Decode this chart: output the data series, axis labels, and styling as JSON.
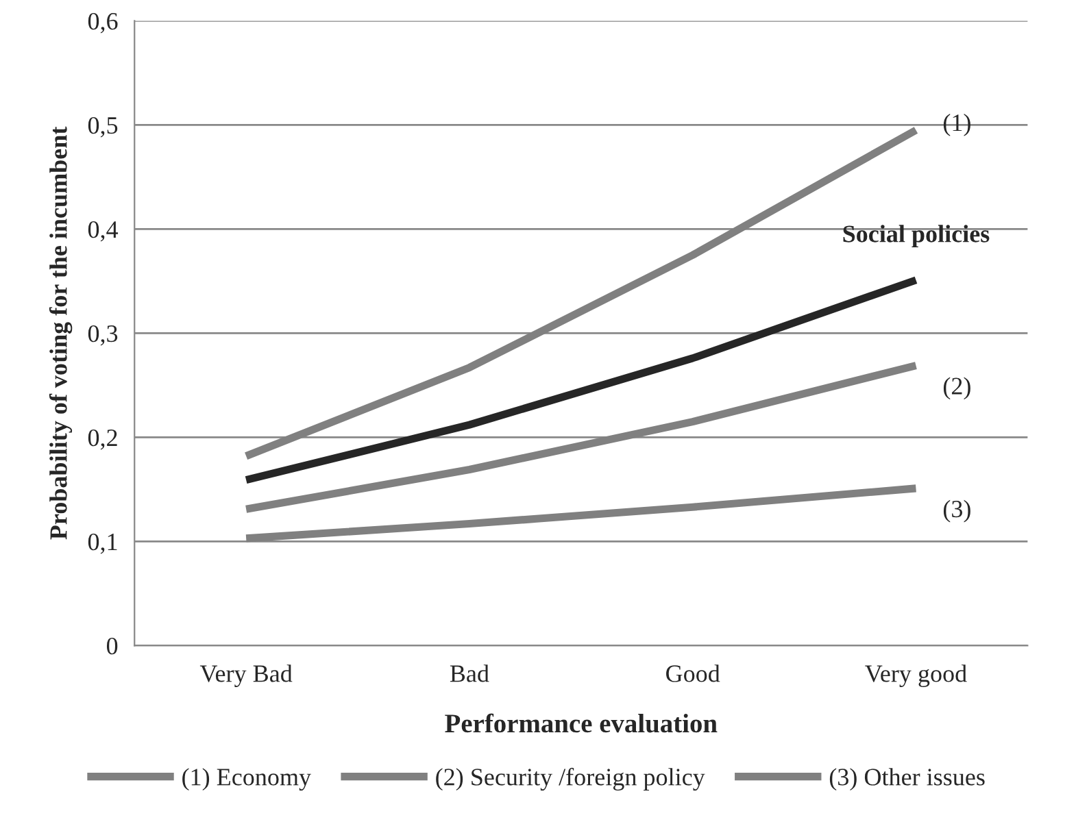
{
  "chart_data": {
    "type": "line",
    "xlabel": "Performance evaluation",
    "ylabel": "Probability of voting for the incumbent",
    "categories": [
      "Very Bad",
      "Bad",
      "Good",
      "Very good"
    ],
    "series": [
      {
        "name": "(1) Economy",
        "color": "#808080",
        "values": [
          0.182,
          0.267,
          0.375,
          0.495
        ]
      },
      {
        "name": "Social policies",
        "color": "#262626",
        "values": [
          0.159,
          0.212,
          0.276,
          0.351
        ]
      },
      {
        "name": "(2) Security /foreign policy",
        "color": "#808080",
        "values": [
          0.131,
          0.169,
          0.215,
          0.269
        ]
      },
      {
        "name": "(3) Other issues",
        "color": "#808080",
        "values": [
          0.103,
          0.117,
          0.133,
          0.151
        ]
      }
    ],
    "annotations": [
      {
        "text": "(1)",
        "x": "Very good",
        "y": 0.5
      },
      {
        "text": "(2)",
        "x": "Very good",
        "y": 0.269
      },
      {
        "text": "(3)",
        "x": "Very good",
        "y": 0.151
      }
    ],
    "ylim": [
      0,
      0.6
    ],
    "yticks": [
      {
        "value": 0,
        "label": "0"
      },
      {
        "value": 0.1,
        "label": "0,1"
      },
      {
        "value": 0.2,
        "label": "0,2"
      },
      {
        "value": 0.3,
        "label": "0,3"
      },
      {
        "value": 0.4,
        "label": "0,4"
      },
      {
        "value": 0.5,
        "label": "0,5"
      },
      {
        "value": 0.6,
        "label": "0,6"
      }
    ],
    "grid": "y",
    "legend": "bottom",
    "marker": "none",
    "line_style": "solid"
  }
}
